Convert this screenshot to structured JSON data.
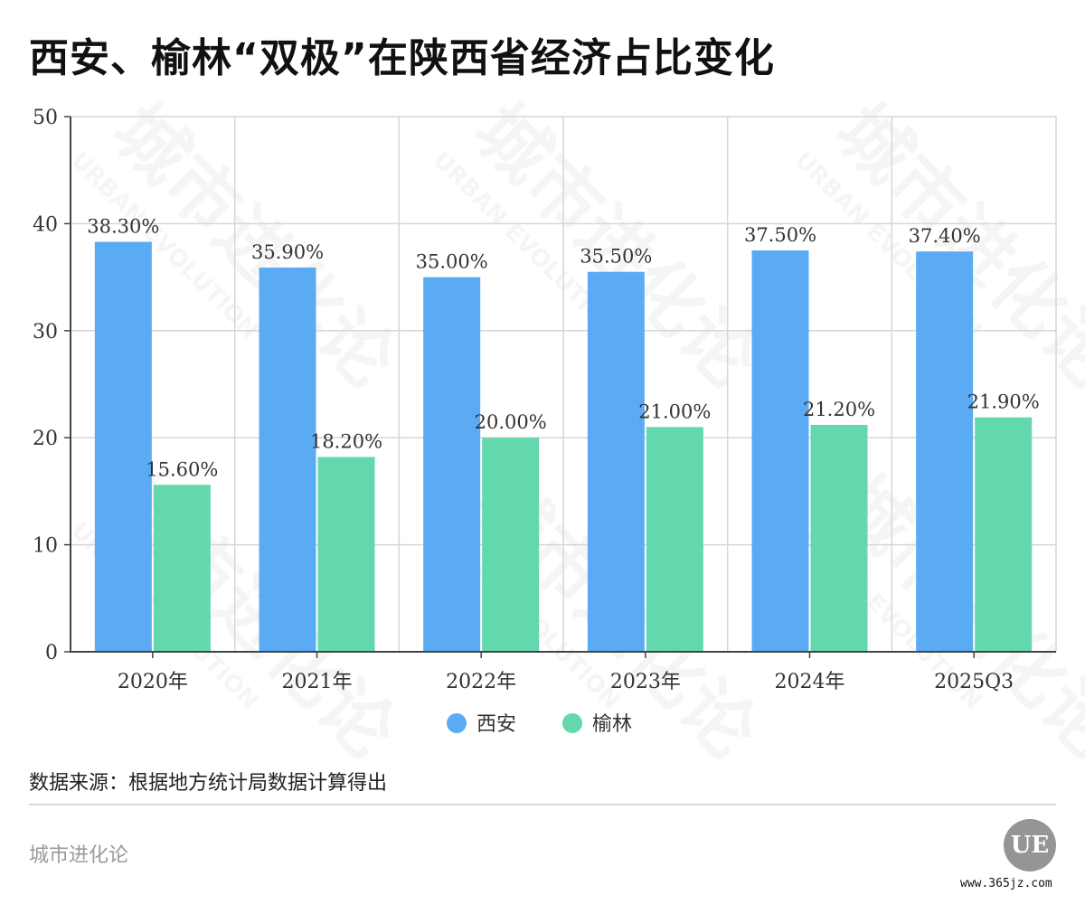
{
  "title": "西安、榆林“双极”在陕西省经济占比变化",
  "chart_data": {
    "type": "bar",
    "categories": [
      "2020年",
      "2021年",
      "2022年",
      "2023年",
      "2024年",
      "2025Q3"
    ],
    "series": [
      {
        "name": "西安",
        "color": "#5aabf4",
        "values": [
          38.3,
          35.9,
          35.0,
          35.5,
          37.5,
          37.4
        ],
        "labels": [
          "38.30%",
          "35.90%",
          "35.00%",
          "35.50%",
          "37.50%",
          "37.40%"
        ]
      },
      {
        "name": "榆林",
        "color": "#62d8ac",
        "values": [
          15.6,
          18.2,
          20.0,
          21.0,
          21.2,
          21.9
        ],
        "labels": [
          "15.60%",
          "18.20%",
          "20.00%",
          "21.00%",
          "21.20%",
          "21.90%"
        ]
      }
    ],
    "yticks": [
      0,
      10,
      20,
      30,
      40,
      50
    ],
    "ylim": [
      0,
      50
    ],
    "grid": true,
    "legend": "bottom-center"
  },
  "footer": {
    "source": "数据来源：根据地方统计局数据计算得出",
    "brand": "城市进化论",
    "logo_text": "UE",
    "site": "www.365jz.com"
  },
  "watermark": {
    "text": "城市进化论",
    "subtext": "URBAN EVOLUTION"
  }
}
